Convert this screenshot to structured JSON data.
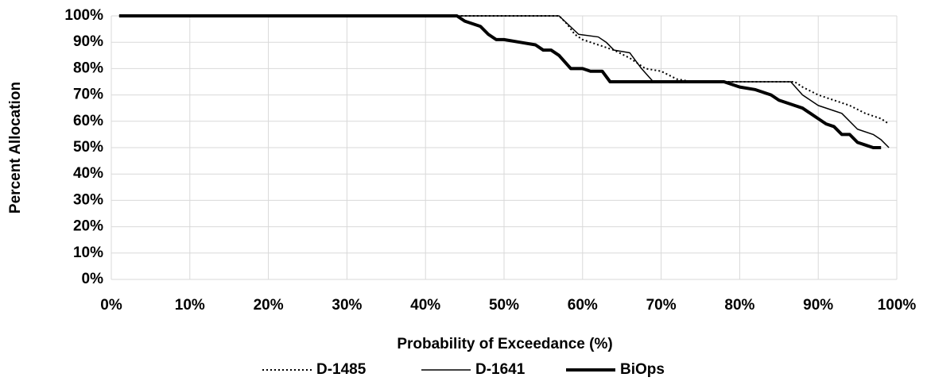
{
  "chart_data": {
    "type": "line",
    "xlabel": "Probability of Exceedance (%)",
    "ylabel": "Percent Allocation",
    "xlim": [
      0,
      100
    ],
    "ylim": [
      0,
      100
    ],
    "xticks": [
      {
        "value": 0,
        "label": "0%"
      },
      {
        "value": 10,
        "label": "10%"
      },
      {
        "value": 20,
        "label": "20%"
      },
      {
        "value": 30,
        "label": "30%"
      },
      {
        "value": 40,
        "label": "40%"
      },
      {
        "value": 50,
        "label": "50%"
      },
      {
        "value": 60,
        "label": "60%"
      },
      {
        "value": 70,
        "label": "70%"
      },
      {
        "value": 80,
        "label": "80%"
      },
      {
        "value": 90,
        "label": "90%"
      },
      {
        "value": 100,
        "label": "100%"
      }
    ],
    "yticks": [
      {
        "value": 0,
        "label": "0%"
      },
      {
        "value": 10,
        "label": "10%"
      },
      {
        "value": 20,
        "label": "20%"
      },
      {
        "value": 30,
        "label": "30%"
      },
      {
        "value": 40,
        "label": "40%"
      },
      {
        "value": 50,
        "label": "50%"
      },
      {
        "value": 60,
        "label": "60%"
      },
      {
        "value": 70,
        "label": "70%"
      },
      {
        "value": 80,
        "label": "80%"
      },
      {
        "value": 90,
        "label": "90%"
      },
      {
        "value": 100,
        "label": "100%"
      }
    ],
    "grid": true,
    "legend": "bottom",
    "series": [
      {
        "name": "D-1485",
        "color": "#000000",
        "dash": "dotted",
        "width": 2,
        "x": [
          1,
          57,
          58,
          59,
          60,
          62,
          64,
          66,
          67,
          68,
          70,
          72,
          74,
          78,
          86,
          87,
          88,
          90,
          92,
          94,
          96,
          98,
          99
        ],
        "values": [
          100,
          100,
          97,
          93,
          91,
          89,
          87,
          84,
          82,
          80,
          79,
          76,
          75,
          75,
          75,
          75,
          73,
          70,
          68,
          66,
          63,
          61,
          59
        ]
      },
      {
        "name": "D-1641",
        "color": "#000000",
        "dash": "solid",
        "width": 1.5,
        "x": [
          1,
          57,
          59.5,
          62,
          63,
          64,
          66,
          67.5,
          69,
          78,
          86.5,
          88,
          90,
          92,
          93,
          95,
          97,
          98,
          99
        ],
        "values": [
          100,
          100,
          93,
          92,
          90,
          87,
          86,
          80,
          75,
          75,
          75,
          70,
          66,
          64,
          63,
          57,
          55,
          53,
          50
        ]
      },
      {
        "name": "BiOps",
        "color": "#000000",
        "dash": "solid",
        "width": 4,
        "x": [
          1,
          44,
          45,
          47,
          48,
          49,
          50,
          52,
          54,
          55,
          56,
          57,
          58.5,
          60,
          61,
          62.5,
          63.5,
          78,
          80,
          82,
          84,
          85,
          87,
          88,
          89,
          90,
          91,
          92,
          93,
          94,
          95,
          96,
          97,
          98
        ],
        "values": [
          100,
          100,
          98,
          96,
          93,
          91,
          91,
          90,
          89,
          87,
          87,
          85,
          80,
          80,
          79,
          79,
          75,
          75,
          73,
          72,
          70,
          68,
          66,
          65,
          63,
          61,
          59,
          58,
          55,
          55,
          52,
          51,
          50,
          50
        ]
      }
    ]
  }
}
